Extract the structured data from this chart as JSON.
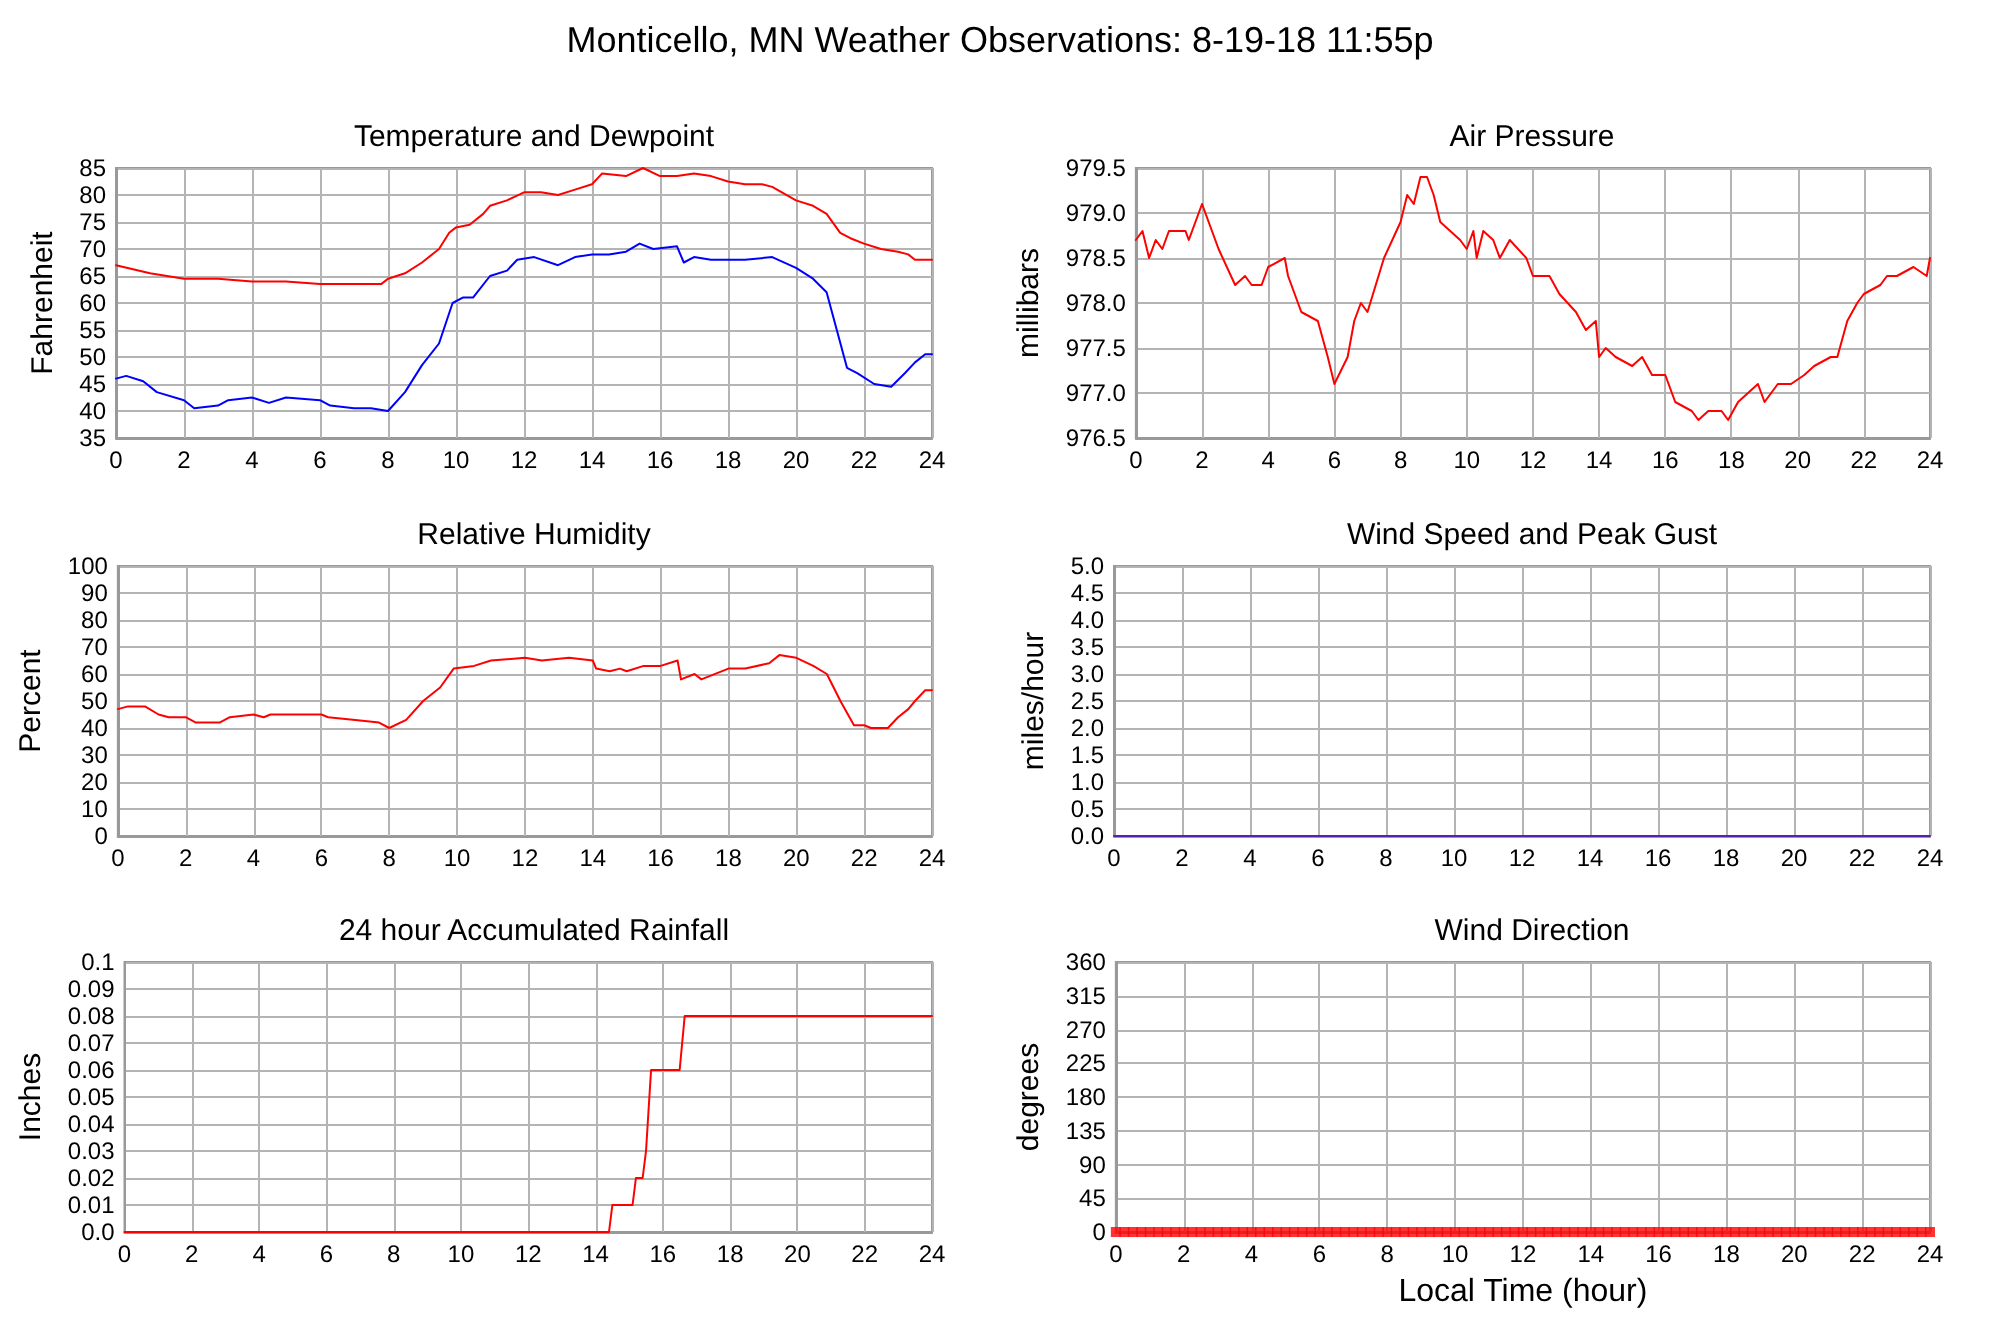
{
  "chart_data": [
    {
      "type": "other",
      "title": "Monticello, MN Weather Observations: 8-19-18 11:55p"
    },
    {
      "type": "line",
      "title": "Temperature and Dewpoint",
      "ylabel": "Fahrenheit",
      "xlim": [
        0,
        24
      ],
      "xticks": [
        0,
        2,
        4,
        6,
        8,
        10,
        12,
        14,
        16,
        18,
        20,
        22,
        24
      ],
      "ylim": [
        35,
        85
      ],
      "yticks": [
        35,
        40,
        45,
        50,
        55,
        60,
        65,
        70,
        75,
        80,
        85
      ],
      "grid": true,
      "series": [
        {
          "color": "#ff0000",
          "x": [
            0,
            1,
            2,
            3,
            4,
            5,
            6,
            7,
            7.8,
            8,
            8.5,
            9,
            9.5,
            9.8,
            10,
            10.4,
            10.8,
            11,
            11.5,
            12,
            12.5,
            13,
            13.5,
            14,
            14.3,
            15,
            15.5,
            16,
            16.5,
            17,
            17.5,
            18,
            18.5,
            19,
            19.3,
            20,
            20.5,
            20.9,
            21.3,
            21.6,
            22,
            22.5,
            23,
            23.3,
            23.5,
            24
          ],
          "values": [
            67,
            65.5,
            64.5,
            64.5,
            64,
            64,
            63.5,
            63.5,
            63.5,
            64.5,
            65.5,
            67.5,
            70,
            73,
            74,
            74.5,
            76.5,
            78,
            79,
            80.5,
            80.5,
            80,
            81,
            82,
            84,
            83.5,
            85,
            83.5,
            83.5,
            84,
            83.5,
            82.5,
            82,
            82,
            81.5,
            79,
            78,
            76.5,
            73,
            72,
            71,
            70,
            69.5,
            69,
            68,
            68
          ]
        },
        {
          "color": "#0000ff",
          "x": [
            0,
            0.3,
            0.8,
            1.2,
            2,
            2.3,
            3,
            3.3,
            4,
            4.5,
            5,
            6,
            6.3,
            7,
            7.5,
            8,
            8.5,
            9,
            9.5,
            9.9,
            10.2,
            10.5,
            11,
            11.5,
            11.8,
            12.3,
            13,
            13.5,
            14,
            14.5,
            15,
            15.4,
            15.8,
            16.5,
            16.7,
            17,
            17.5,
            18,
            18.5,
            19.3,
            20,
            20.5,
            20.9,
            21.2,
            21.5,
            21.8,
            22.3,
            22.8,
            23.2,
            23.5,
            23.8,
            24
          ],
          "values": [
            46,
            46.5,
            45.5,
            43.5,
            42,
            40.5,
            41,
            42,
            42.5,
            41.5,
            42.5,
            42,
            41,
            40.5,
            40.5,
            40,
            43.5,
            48.5,
            52.5,
            60,
            61,
            61,
            65,
            66,
            68,
            68.5,
            67,
            68.5,
            69,
            69,
            69.5,
            71,
            70,
            70.5,
            67.5,
            68.5,
            68,
            68,
            68,
            68.5,
            66.5,
            64.5,
            62,
            55,
            48,
            47,
            45,
            44.5,
            47,
            49,
            50.5,
            50.5
          ]
        }
      ]
    },
    {
      "type": "line",
      "title": "Air Pressure",
      "ylabel": "millibars",
      "xlim": [
        0,
        24
      ],
      "xticks": [
        0,
        2,
        4,
        6,
        8,
        10,
        12,
        14,
        16,
        18,
        20,
        22,
        24
      ],
      "ylim": [
        976.5,
        979.5
      ],
      "yticks": [
        976.5,
        {
          "value": 977,
          "label": "977.0"
        },
        977.5,
        {
          "value": 978,
          "label": "978.0"
        },
        978.5,
        {
          "value": 979,
          "label": "979.0"
        },
        979.5
      ],
      "grid": true,
      "series": [
        {
          "color": "#ff0000",
          "x": [
            0,
            0.2,
            0.4,
            0.6,
            0.8,
            1,
            1.5,
            1.6,
            2,
            2.5,
            3,
            3.3,
            3.5,
            3.8,
            4,
            4.5,
            4.6,
            5,
            5.5,
            5.8,
            6,
            6.4,
            6.6,
            6.8,
            7,
            7.5,
            8,
            8.2,
            8.4,
            8.6,
            8.8,
            9,
            9.2,
            9.5,
            9.8,
            10,
            10.2,
            10.3,
            10.5,
            10.8,
            11,
            11.3,
            11.8,
            12,
            12.5,
            12.8,
            13.3,
            13.6,
            13.9,
            14,
            14.2,
            14.5,
            15,
            15.3,
            15.6,
            16,
            16.3,
            16.8,
            17,
            17.3,
            17.7,
            17.9,
            18.2,
            18.5,
            18.8,
            19,
            19.4,
            19.8,
            20.2,
            20.5,
            21,
            21.2,
            21.5,
            21.8,
            22,
            22.5,
            22.7,
            23,
            23.5,
            23.9,
            24
          ],
          "values": [
            978.7,
            978.8,
            978.5,
            978.7,
            978.6,
            978.8,
            978.8,
            978.7,
            979.1,
            978.6,
            978.2,
            978.3,
            978.2,
            978.2,
            978.4,
            978.5,
            978.3,
            977.9,
            977.8,
            977.4,
            977.1,
            977.4,
            977.8,
            978,
            977.9,
            978.5,
            978.9,
            979.2,
            979.1,
            979.4,
            979.4,
            979.2,
            978.9,
            978.8,
            978.7,
            978.6,
            978.8,
            978.5,
            978.8,
            978.7,
            978.5,
            978.7,
            978.5,
            978.3,
            978.3,
            978.1,
            977.9,
            977.7,
            977.8,
            977.4,
            977.5,
            977.4,
            977.3,
            977.4,
            977.2,
            977.2,
            976.9,
            976.8,
            976.7,
            976.8,
            976.8,
            976.7,
            976.9,
            977,
            977.1,
            976.9,
            977.1,
            977.1,
            977.2,
            977.3,
            977.4,
            977.4,
            977.8,
            978,
            978.1,
            978.2,
            978.3,
            978.3,
            978.4,
            978.3,
            978.5
          ]
        }
      ]
    },
    {
      "type": "line",
      "title": "Relative Humidity",
      "ylabel": "Percent",
      "xlim": [
        0,
        24
      ],
      "xticks": [
        0,
        2,
        4,
        6,
        8,
        10,
        12,
        14,
        16,
        18,
        20,
        22,
        24
      ],
      "ylim": [
        0,
        100
      ],
      "yticks": [
        0,
        10,
        20,
        30,
        40,
        50,
        60,
        70,
        80,
        90,
        100
      ],
      "grid": true,
      "series": [
        {
          "color": "#ff0000",
          "x": [
            0,
            0.3,
            0.8,
            1.2,
            1.5,
            2,
            2.3,
            3,
            3.3,
            4,
            4.3,
            4.5,
            5,
            6,
            6.2,
            7,
            7.7,
            8,
            8.5,
            9,
            9.5,
            9.9,
            10.5,
            11,
            12,
            12.5,
            13.3,
            14,
            14.1,
            14.5,
            14.8,
            15,
            15.5,
            16,
            16.5,
            16.6,
            17,
            17.2,
            18,
            18.5,
            19.2,
            19.5,
            20,
            20.5,
            20.9,
            21.3,
            21.7,
            22,
            22.2,
            22.7,
            23,
            23.3,
            23.5,
            23.8,
            24
          ],
          "values": [
            47,
            48,
            48,
            45,
            44,
            44,
            42,
            42,
            44,
            45,
            44,
            45,
            45,
            45,
            44,
            43,
            42,
            40,
            43,
            50,
            55,
            62,
            63,
            65,
            66,
            65,
            66,
            65,
            62,
            61,
            62,
            61,
            63,
            63,
            65,
            58,
            60,
            58,
            62,
            62,
            64,
            67,
            66,
            63,
            60,
            50,
            41,
            41,
            40,
            40,
            44,
            47,
            50,
            54,
            54
          ]
        }
      ]
    },
    {
      "type": "line",
      "title": "Wind Speed and Peak Gust",
      "ylabel": "miles/hour",
      "xlim": [
        0,
        24
      ],
      "xticks": [
        0,
        2,
        4,
        6,
        8,
        10,
        12,
        14,
        16,
        18,
        20,
        22,
        24
      ],
      "ylim": [
        0,
        5
      ],
      "yticks": [
        {
          "value": 0,
          "label": "0.0"
        },
        0.5,
        {
          "value": 1,
          "label": "1.0"
        },
        1.5,
        {
          "value": 2,
          "label": "2.0"
        },
        2.5,
        {
          "value": 3,
          "label": "3.0"
        },
        3.5,
        {
          "value": 4,
          "label": "4.0"
        },
        4.5,
        {
          "value": 5,
          "label": "5.0"
        }
      ],
      "grid": true,
      "series": [
        {
          "color": "#5522aa",
          "x": [
            0,
            24
          ],
          "values": [
            0,
            0
          ]
        }
      ]
    },
    {
      "type": "line",
      "title": "24 hour Accumulated Rainfall",
      "ylabel": "Inches",
      "xlim": [
        0,
        24
      ],
      "xticks": [
        0,
        2,
        4,
        6,
        8,
        10,
        12,
        14,
        16,
        18,
        20,
        22,
        24
      ],
      "ylim": [
        0,
        0.1
      ],
      "yticks": [
        {
          "value": 0,
          "label": "0.0"
        },
        0.01,
        0.02,
        0.03,
        0.04,
        0.05,
        0.06,
        0.07,
        0.08,
        0.09,
        0.1
      ],
      "grid": true,
      "series": [
        {
          "color": "#ff0000",
          "x": [
            0,
            14.4,
            14.5,
            15.1,
            15.2,
            15.4,
            15.5,
            15.65,
            16.5,
            16.65,
            24
          ],
          "values": [
            0,
            0,
            0.01,
            0.01,
            0.02,
            0.02,
            0.03,
            0.06,
            0.06,
            0.08,
            0.08
          ]
        }
      ]
    },
    {
      "type": "scatter",
      "title": "Wind Direction",
      "xlabel": "Local Time (hour)",
      "ylabel": "degrees",
      "xlim": [
        0,
        24
      ],
      "xticks": [
        0,
        2,
        4,
        6,
        8,
        10,
        12,
        14,
        16,
        18,
        20,
        22,
        24
      ],
      "ylim": [
        0,
        360
      ],
      "yticks": [
        0,
        45,
        90,
        135,
        180,
        225,
        270,
        315,
        360
      ],
      "grid": true,
      "marker": "square",
      "series": [
        {
          "color": "#ff0000",
          "x": [
            0,
            0.25,
            0.5,
            0.75,
            1,
            1.25,
            1.5,
            1.75,
            2,
            2.25,
            2.5,
            2.75,
            3,
            3.25,
            3.5,
            3.75,
            4,
            4.25,
            4.5,
            4.75,
            5,
            5.25,
            5.5,
            5.75,
            6,
            6.25,
            6.5,
            6.75,
            7,
            7.25,
            7.5,
            7.75,
            8,
            8.25,
            8.5,
            8.75,
            9,
            9.25,
            9.5,
            9.75,
            10,
            10.25,
            10.5,
            10.75,
            11,
            11.25,
            11.5,
            11.75,
            12,
            12.25,
            12.5,
            12.75,
            13,
            13.25,
            13.5,
            13.75,
            14,
            14.25,
            14.5,
            14.75,
            15,
            15.25,
            15.5,
            15.75,
            16,
            16.25,
            16.5,
            16.75,
            17,
            17.25,
            17.5,
            17.75,
            18,
            18.25,
            18.5,
            18.75,
            19,
            19.25,
            19.5,
            19.75,
            20,
            20.25,
            20.5,
            20.75,
            21,
            21.25,
            21.5,
            21.75,
            22,
            22.25,
            22.5,
            22.75,
            23,
            23.25,
            23.5,
            23.75,
            24
          ],
          "values": [
            0,
            0,
            0,
            0,
            0,
            0,
            0,
            0,
            0,
            0,
            0,
            0,
            0,
            0,
            0,
            0,
            0,
            0,
            0,
            0,
            0,
            0,
            0,
            0,
            0,
            0,
            0,
            0,
            0,
            0,
            0,
            0,
            0,
            0,
            0,
            0,
            0,
            0,
            0,
            0,
            0,
            0,
            0,
            0,
            0,
            0,
            0,
            0,
            0,
            0,
            0,
            0,
            0,
            0,
            0,
            0,
            0,
            0,
            0,
            0,
            0,
            0,
            0,
            0,
            0,
            0,
            0,
            0,
            0,
            0,
            0,
            0,
            0,
            0,
            0,
            0,
            0,
            0,
            0,
            0,
            0,
            0,
            0,
            0,
            0,
            0,
            0,
            0,
            0,
            0,
            0,
            0,
            0,
            0,
            0,
            0,
            0
          ]
        }
      ]
    }
  ]
}
